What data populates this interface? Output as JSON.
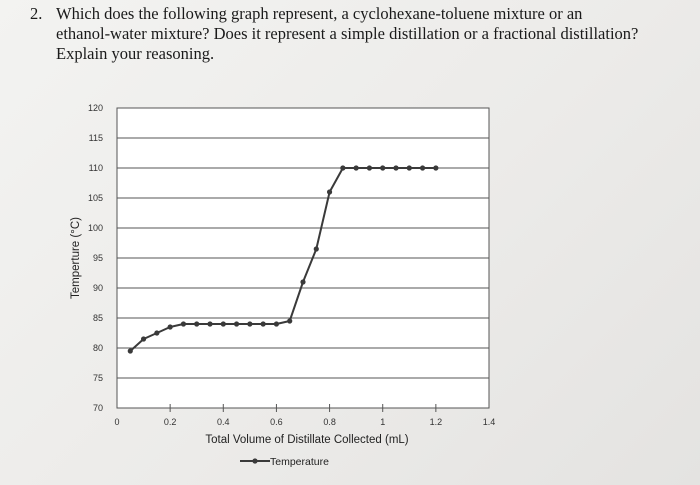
{
  "question": {
    "number": "2.",
    "lines": [
      "Which does the following graph represent, a cyclohexane-toluene mixture or an",
      "ethanol-water mixture? Does it represent a simple distillation or a fractional distillation?",
      "Explain your reasoning."
    ]
  },
  "chart_data": {
    "type": "line",
    "xlabel": "Total Volume of Distillate Collected (mL)",
    "ylabel": "Temperture (°C)",
    "xlim": [
      0,
      1.4
    ],
    "ylim": [
      70,
      120
    ],
    "x_ticks": [
      0,
      0.2,
      0.4,
      0.6,
      0.8,
      1,
      1.2,
      1.4
    ],
    "x_tick_labels": [
      "0",
      "0.2",
      "0.4",
      "0.6",
      "0.8",
      "1",
      "1.2",
      "1.4"
    ],
    "y_ticks": [
      70,
      75,
      80,
      85,
      90,
      95,
      100,
      105,
      110,
      115,
      120
    ],
    "y_tick_labels": [
      "70",
      "75",
      "80",
      "85",
      "90",
      "95",
      "100",
      "105",
      "110",
      "115",
      "120"
    ],
    "grid": "horizontal",
    "legend": "bottom",
    "series": [
      {
        "name": "Temperature",
        "color": "#3a3a3a",
        "x": [
          0.05,
          0.1,
          0.15,
          0.2,
          0.25,
          0.3,
          0.35,
          0.4,
          0.45,
          0.5,
          0.55,
          0.6,
          0.65,
          0.7,
          0.75,
          0.8,
          0.85,
          0.9,
          0.95,
          1.0,
          1.05,
          1.1,
          1.15,
          1.2
        ],
        "y": [
          79.5,
          81.5,
          82.5,
          83.5,
          84,
          84,
          84,
          84,
          84,
          84,
          84,
          84,
          84.5,
          91,
          96.5,
          106,
          110,
          110,
          110,
          110,
          110,
          110,
          110,
          110
        ]
      }
    ]
  }
}
